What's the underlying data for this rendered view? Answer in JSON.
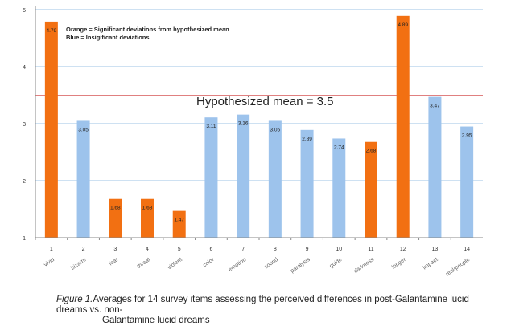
{
  "chart_data": {
    "type": "bar",
    "categories": [
      "1",
      "2",
      "3",
      "4",
      "5",
      "6",
      "7",
      "8",
      "9",
      "10",
      "11",
      "12",
      "13",
      "14"
    ],
    "item_labels": [
      "vivid",
      "bizarre",
      "fear",
      "threat",
      "violent",
      "color",
      "emotion",
      "sound",
      "paralysis",
      "guide",
      "darkness",
      "longer",
      "impact",
      "real/people"
    ],
    "values": [
      4.79,
      3.05,
      1.68,
      1.68,
      1.47,
      3.11,
      3.16,
      3.05,
      2.89,
      2.74,
      2.68,
      4.89,
      3.47,
      2.95
    ],
    "value_labels": [
      "4.79",
      "3.05",
      "1.68",
      "1.68",
      "1.47",
      "3.11",
      "3.16",
      "3.05",
      "2.89",
      "2.74",
      "2.68",
      "4.89",
      "3.47",
      "2.95"
    ],
    "significant": [
      true,
      false,
      true,
      true,
      true,
      false,
      false,
      false,
      false,
      false,
      true,
      true,
      false,
      false
    ],
    "ylim": [
      1,
      5
    ],
    "yticks": [
      "1",
      "2",
      "3",
      "4",
      "5"
    ],
    "grid": true,
    "reference_line": {
      "value": 3.5,
      "label": "Hypothesized mean = 3.5",
      "color": "#e08080"
    },
    "legend": [
      "Orange = Significant deviations from hypothesized mean",
      "Blue = Insigificant deviations"
    ],
    "colors": {
      "significant": "#f27012",
      "insignificant": "#9dc3ec",
      "grid": "#9cc3e4",
      "axis": "#888888"
    }
  },
  "caption": {
    "figure_label": "Figure 1.",
    "text_line1": "Averages for 14 survey items assessing the perceived differences in post-Galantamine lucid dreams vs. non-",
    "text_line2": "Galantamine lucid dreams"
  }
}
